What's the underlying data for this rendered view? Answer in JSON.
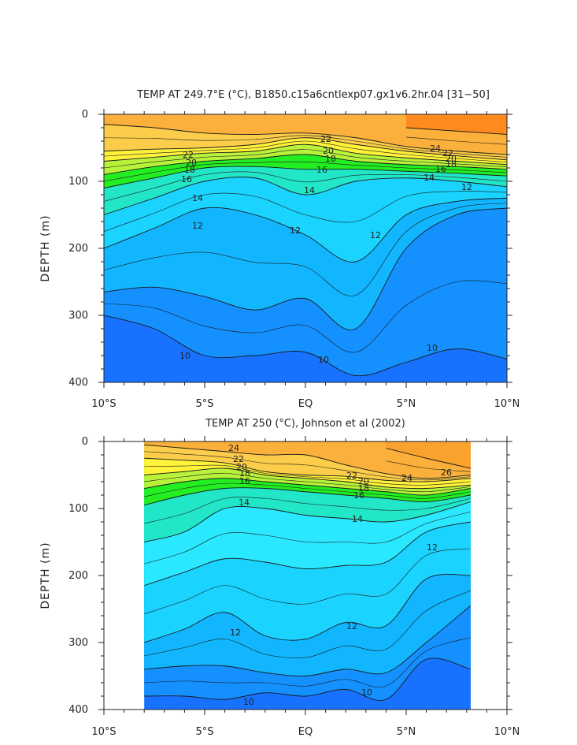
{
  "chart_data": [
    {
      "type": "contour",
      "title": "TEMP AT 249.7°E (°C), B1850.c15a6cntlexp07.gx1v6.2hr.04 [31−50]",
      "ylabel": "DEPTH (m)",
      "xlabel": "",
      "xlim": [
        -10,
        10
      ],
      "ylim": [
        400,
        0
      ],
      "x_ticks": [
        "10°S",
        "5°S",
        "EQ",
        "5°N",
        "10°N"
      ],
      "y_ticks": [
        "0",
        "100",
        "200",
        "300",
        "400"
      ],
      "data_xrange": [
        -10,
        10
      ],
      "contour_labels": [
        "22",
        "20",
        "18",
        "16",
        "14",
        "12",
        "12",
        "12",
        "10",
        "10",
        "10",
        "22",
        "20",
        "18",
        "16",
        "14",
        "12",
        "24",
        "22",
        "20",
        "18",
        "16",
        "14"
      ],
      "isotherm_depths": {
        "x": [
          -10,
          -7.5,
          -5,
          -2.5,
          0,
          2.5,
          5,
          7.5,
          10
        ],
        "t26": [
          null,
          null,
          null,
          null,
          null,
          null,
          20,
          25,
          30
        ],
        "t24": [
          15,
          20,
          28,
          30,
          28,
          35,
          48,
          55,
          60
        ],
        "t22": [
          55,
          52,
          50,
          45,
          35,
          45,
          55,
          62,
          68
        ],
        "t20": [
          70,
          64,
          58,
          55,
          45,
          58,
          65,
          70,
          75
        ],
        "t18": [
          90,
          78,
          70,
          66,
          60,
          70,
          75,
          78,
          82
        ],
        "t16": [
          110,
          95,
          80,
          78,
          82,
          82,
          85,
          88,
          92
        ],
        "t14": [
          150,
          125,
          100,
          95,
          120,
          100,
          95,
          100,
          108
        ],
        "t12": [
          200,
          170,
          140,
          150,
          180,
          220,
          150,
          130,
          125
        ],
        "t11": [
          265,
          258,
          272,
          292,
          275,
          320,
          200,
          150,
          140
        ],
        "t10": [
          300,
          320,
          360,
          360,
          355,
          390,
          370,
          350,
          365
        ]
      }
    },
    {
      "type": "contour",
      "title": "TEMP AT 250 (°C), Johnson et al (2002)",
      "ylabel": "DEPTH (m)",
      "xlabel": "",
      "xlim": [
        -10,
        10
      ],
      "ylim": [
        400,
        0
      ],
      "x_ticks": [
        "10°S",
        "5°S",
        "EQ",
        "5°N",
        "10°N"
      ],
      "y_ticks": [
        "0",
        "100",
        "200",
        "300",
        "400"
      ],
      "data_xrange": [
        -8,
        8.2
      ],
      "contour_labels": [
        "24",
        "22",
        "20",
        "18",
        "16",
        "14",
        "22",
        "20",
        "18",
        "16",
        "14",
        "24",
        "26",
        "12",
        "12",
        "12",
        "10",
        "10"
      ],
      "isotherm_depths": {
        "x": [
          -8,
          -6,
          -4,
          -2,
          0,
          2,
          4,
          6,
          8.2
        ],
        "t26": [
          null,
          null,
          null,
          null,
          null,
          null,
          10,
          25,
          40
        ],
        "t24": [
          5,
          10,
          15,
          20,
          20,
          35,
          48,
          55,
          50
        ],
        "t22": [
          25,
          28,
          32,
          45,
          50,
          52,
          58,
          60,
          55
        ],
        "t20": [
          50,
          45,
          40,
          50,
          55,
          60,
          68,
          70,
          65
        ],
        "t18": [
          70,
          60,
          55,
          60,
          65,
          70,
          75,
          80,
          70
        ],
        "t16": [
          95,
          80,
          70,
          70,
          75,
          80,
          85,
          90,
          80
        ],
        "t14": [
          150,
          135,
          100,
          100,
          110,
          115,
          120,
          110,
          90
        ],
        "t13": [
          215,
          195,
          175,
          180,
          190,
          185,
          180,
          135,
          120
        ],
        "t12": [
          300,
          280,
          255,
          290,
          295,
          270,
          275,
          205,
          200
        ],
        "t11": [
          340,
          335,
          335,
          345,
          350,
          340,
          345,
          300,
          245
        ],
        "t10": [
          380,
          380,
          385,
          375,
          380,
          370,
          385,
          325,
          340
        ]
      }
    }
  ]
}
